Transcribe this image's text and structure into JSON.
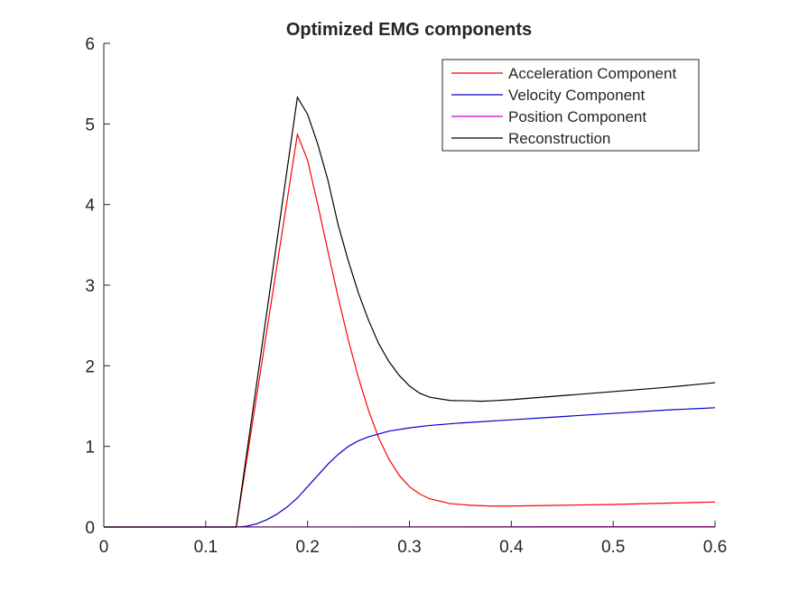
{
  "chart_data": {
    "type": "line",
    "title": "Optimized EMG components",
    "xlabel": "",
    "ylabel": "",
    "xlim": [
      0,
      0.6
    ],
    "ylim": [
      0,
      6
    ],
    "xticks": [
      0,
      0.1,
      0.2,
      0.3,
      0.4,
      0.5,
      0.6
    ],
    "yticks": [
      0,
      1,
      2,
      3,
      4,
      5,
      6
    ],
    "grid": false,
    "legend_position": "top-right",
    "series": [
      {
        "name": "Acceleration Component",
        "color": "#ff0000",
        "x": [
          0,
          0.13,
          0.19,
          0.2,
          0.21,
          0.22,
          0.23,
          0.24,
          0.25,
          0.26,
          0.27,
          0.28,
          0.29,
          0.3,
          0.31,
          0.32,
          0.34,
          0.36,
          0.38,
          0.4,
          0.45,
          0.5,
          0.55,
          0.6
        ],
        "y": [
          0,
          0,
          4.87,
          4.55,
          4.0,
          3.42,
          2.85,
          2.32,
          1.85,
          1.44,
          1.1,
          0.84,
          0.64,
          0.5,
          0.41,
          0.35,
          0.29,
          0.27,
          0.26,
          0.26,
          0.27,
          0.28,
          0.295,
          0.31
        ]
      },
      {
        "name": "Velocity Component",
        "color": "#0000cc",
        "x": [
          0,
          0.13,
          0.14,
          0.15,
          0.16,
          0.17,
          0.18,
          0.19,
          0.2,
          0.21,
          0.22,
          0.23,
          0.24,
          0.25,
          0.26,
          0.28,
          0.3,
          0.32,
          0.35,
          0.4,
          0.45,
          0.5,
          0.55,
          0.6
        ],
        "y": [
          0,
          0,
          0.01,
          0.04,
          0.09,
          0.16,
          0.25,
          0.36,
          0.5,
          0.64,
          0.78,
          0.9,
          1.0,
          1.07,
          1.12,
          1.19,
          1.23,
          1.26,
          1.29,
          1.33,
          1.37,
          1.41,
          1.45,
          1.48
        ]
      },
      {
        "name": "Position Component",
        "color": "#cc00cc",
        "x": [
          0,
          0.6
        ],
        "y": [
          0,
          0.005
        ]
      },
      {
        "name": "Reconstruction",
        "color": "#000000",
        "x": [
          0,
          0.13,
          0.19,
          0.2,
          0.21,
          0.22,
          0.23,
          0.24,
          0.25,
          0.26,
          0.27,
          0.28,
          0.29,
          0.3,
          0.31,
          0.32,
          0.34,
          0.36,
          0.37,
          0.38,
          0.4,
          0.45,
          0.5,
          0.55,
          0.6
        ],
        "y": [
          0,
          0,
          5.33,
          5.12,
          4.75,
          4.3,
          3.75,
          3.3,
          2.9,
          2.56,
          2.27,
          2.05,
          1.88,
          1.75,
          1.66,
          1.61,
          1.57,
          1.565,
          1.56,
          1.565,
          1.58,
          1.63,
          1.68,
          1.73,
          1.79
        ]
      }
    ]
  }
}
